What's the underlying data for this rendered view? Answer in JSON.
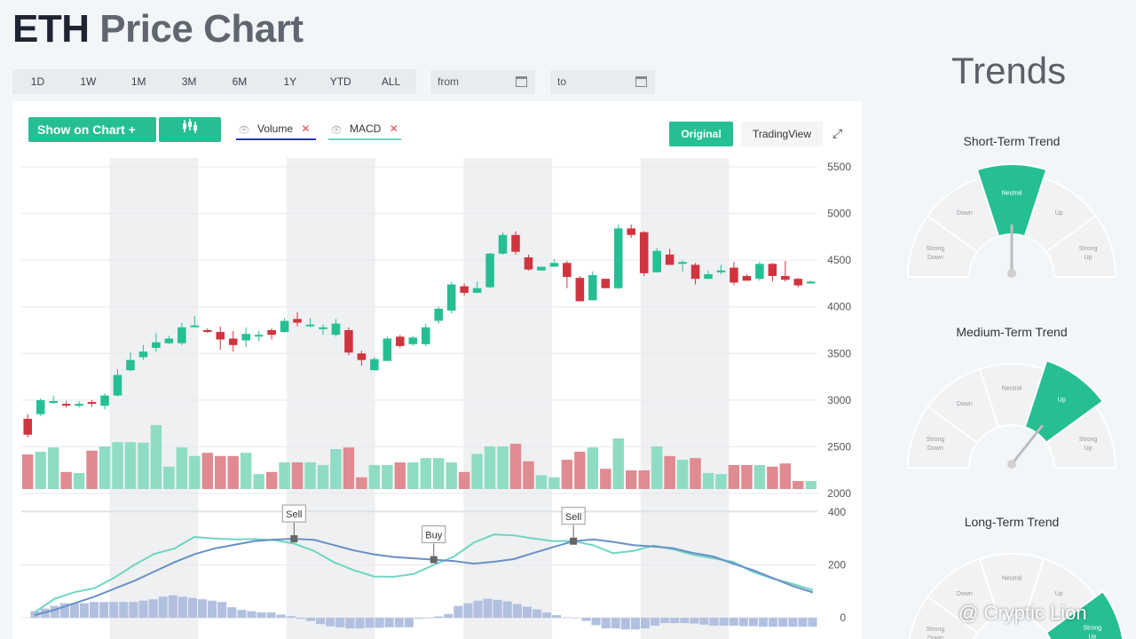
{
  "title": {
    "symbol": "ETH",
    "rest": "Price Chart"
  },
  "ranges": [
    "1D",
    "1W",
    "1M",
    "3M",
    "6M",
    "1Y",
    "YTD",
    "ALL"
  ],
  "date_from": {
    "placeholder": "from"
  },
  "date_to": {
    "placeholder": "to"
  },
  "toolbar": {
    "show_on_chart": "Show on Chart +",
    "indicators_icon": "candlestick-icon",
    "volume_tag": "Volume",
    "macd_tag": "MACD",
    "remove_mark": "✕",
    "original": "Original",
    "tradingview": "TradingView",
    "popout_icon": "popout-icon"
  },
  "colors": {
    "up": "#26bf94",
    "down": "#d0343f",
    "up_vol": "#8fdcc4",
    "down_vol": "#e08a91",
    "macd_line": "#6a8fc7",
    "signal_line": "#6fd5c2",
    "hist": "#b2c0e0",
    "accent": "#26bf94"
  },
  "chart_data": [
    {
      "type": "candlestick",
      "title": "",
      "ylim": [
        2000,
        5500
      ],
      "yticks": [
        2000,
        2500,
        3000,
        3500,
        4000,
        4500,
        5000,
        5500
      ],
      "candles": [
        [
          2800,
          2630,
          2850,
          2600
        ],
        [
          2850,
          3000,
          3020,
          2830
        ],
        [
          2970,
          2990,
          3050,
          2960
        ],
        [
          2960,
          2950,
          2990,
          2920
        ],
        [
          2940,
          2960,
          2990,
          2920
        ],
        [
          2980,
          2970,
          3000,
          2930
        ],
        [
          2940,
          3050,
          3070,
          2900
        ],
        [
          3050,
          3270,
          3330,
          3040
        ],
        [
          3320,
          3430,
          3510,
          3310
        ],
        [
          3460,
          3520,
          3590,
          3430
        ],
        [
          3560,
          3620,
          3720,
          3520
        ],
        [
          3610,
          3660,
          3690,
          3600
        ],
        [
          3610,
          3780,
          3830,
          3590
        ],
        [
          3790,
          3800,
          3900,
          3790
        ],
        [
          3750,
          3740,
          3770,
          3720
        ],
        [
          3730,
          3650,
          3790,
          3540
        ],
        [
          3660,
          3590,
          3740,
          3520
        ],
        [
          3640,
          3710,
          3780,
          3570
        ],
        [
          3700,
          3700,
          3740,
          3630
        ],
        [
          3750,
          3700,
          3770,
          3650
        ],
        [
          3730,
          3850,
          3880,
          3720
        ],
        [
          3870,
          3830,
          3940,
          3790
        ],
        [
          3810,
          3810,
          3880,
          3780
        ],
        [
          3780,
          3780,
          3810,
          3700
        ],
        [
          3700,
          3820,
          3870,
          3680
        ],
        [
          3750,
          3510,
          3780,
          3480
        ],
        [
          3500,
          3430,
          3530,
          3370
        ],
        [
          3320,
          3440,
          3460,
          3320
        ],
        [
          3420,
          3660,
          3680,
          3420
        ],
        [
          3680,
          3580,
          3700,
          3560
        ],
        [
          3600,
          3670,
          3690,
          3580
        ],
        [
          3600,
          3780,
          3820,
          3580
        ],
        [
          3850,
          3980,
          4000,
          3820
        ],
        [
          3960,
          4240,
          4270,
          3930
        ],
        [
          4220,
          4150,
          4250,
          4120
        ],
        [
          4150,
          4200,
          4270,
          4150
        ],
        [
          4210,
          4570,
          4580,
          4200
        ],
        [
          4570,
          4770,
          4800,
          4560
        ],
        [
          4770,
          4590,
          4810,
          4560
        ],
        [
          4530,
          4400,
          4560,
          4390
        ],
        [
          4390,
          4430,
          4430,
          4390
        ],
        [
          4430,
          4470,
          4510,
          4430
        ],
        [
          4470,
          4320,
          4490,
          4200
        ],
        [
          4310,
          4060,
          4330,
          4060
        ],
        [
          4070,
          4340,
          4380,
          4070
        ],
        [
          4300,
          4200,
          4300,
          4200
        ],
        [
          4200,
          4840,
          4880,
          4190
        ],
        [
          4840,
          4770,
          4880,
          4740
        ],
        [
          4800,
          4360,
          4810,
          4330
        ],
        [
          4370,
          4600,
          4630,
          4370
        ],
        [
          4560,
          4450,
          4620,
          4450
        ],
        [
          4480,
          4480,
          4500,
          4380
        ],
        [
          4450,
          4300,
          4470,
          4240
        ],
        [
          4300,
          4350,
          4390,
          4300
        ],
        [
          4370,
          4390,
          4450,
          4350
        ],
        [
          4420,
          4260,
          4480,
          4230
        ],
        [
          4330,
          4280,
          4350,
          4280
        ],
        [
          4300,
          4460,
          4480,
          4280
        ],
        [
          4460,
          4330,
          4470,
          4270
        ],
        [
          4330,
          4290,
          4490,
          4270
        ],
        [
          4300,
          4230,
          4310,
          4210
        ],
        [
          4250,
          4270,
          4280,
          4250
        ]
      ],
      "volume_relative": [
        0.65,
        0.7,
        0.78,
        0.32,
        0.3,
        0.72,
        0.8,
        0.88,
        0.88,
        0.87,
        1.2,
        0.42,
        0.78,
        0.62,
        0.68,
        0.62,
        0.62,
        0.68,
        0.28,
        0.32,
        0.5,
        0.5,
        0.5,
        0.45,
        0.75,
        0.78,
        0.22,
        0.45,
        0.45,
        0.5,
        0.5,
        0.58,
        0.58,
        0.5,
        0.32,
        0.66,
        0.8,
        0.8,
        0.85,
        0.52,
        0.26,
        0.22,
        0.55,
        0.7,
        0.78,
        0.38,
        0.95,
        0.35,
        0.35,
        0.8,
        0.62,
        0.55,
        0.58,
        0.3,
        0.28,
        0.45,
        0.45,
        0.45,
        0.42,
        0.48,
        0.15,
        0.15
      ]
    },
    {
      "type": "line",
      "title": "MACD",
      "ylim": [
        -40,
        400
      ],
      "yticks": [
        0,
        200,
        400
      ],
      "macd": [
        10,
        30,
        55,
        80,
        110,
        140,
        175,
        210,
        240,
        262,
        276,
        290,
        296,
        299,
        295,
        275,
        255,
        240,
        230,
        225,
        220,
        215,
        205,
        212,
        222,
        245,
        268,
        290,
        297,
        287,
        275,
        270,
        263,
        245,
        232,
        205,
        180,
        150,
        120,
        96
      ],
      "signal": [
        20,
        72,
        97,
        112,
        152,
        200,
        242,
        262,
        306,
        300,
        297,
        298,
        294,
        281,
        253,
        210,
        180,
        156,
        155,
        166,
        200,
        231,
        284,
        315,
        312,
        300,
        290,
        291,
        274,
        244,
        253,
        273,
        259,
        238,
        225,
        212,
        173,
        148,
        128,
        105
      ],
      "histogram": [
        25,
        35,
        45,
        55,
        55,
        55,
        60,
        60,
        60,
        60,
        60,
        65,
        70,
        80,
        85,
        80,
        75,
        70,
        65,
        60,
        40,
        30,
        25,
        20,
        20,
        12,
        6,
        -4,
        -12,
        -24,
        -32,
        -36,
        -40,
        -40,
        -38,
        -38,
        -36,
        -36,
        -36,
        -4,
        -2,
        5,
        14,
        45,
        55,
        65,
        72,
        68,
        62,
        52,
        42,
        32,
        20,
        10,
        2,
        -2,
        -12,
        -28,
        -40,
        -40,
        -44,
        -44,
        -40,
        -30,
        -20,
        -20,
        -20,
        -22,
        -26,
        -30,
        -30,
        -30,
        -32,
        -32,
        -34,
        -34,
        -34,
        -34,
        -34,
        -34
      ],
      "signals": [
        {
          "label": "Sell",
          "index": 13
        },
        {
          "label": "Buy",
          "index": 20
        },
        {
          "label": "Sell",
          "index": 27
        }
      ]
    }
  ],
  "trends": {
    "title": "Trends",
    "segment_labels": [
      "Strong Down",
      "Down",
      "Neutral",
      "Up",
      "Strong Up"
    ],
    "gauges": [
      {
        "title": "Short-Term Trend",
        "value": "Neutral",
        "active_index": 2
      },
      {
        "title": "Medium-Term Trend",
        "value": "Up",
        "active_index": 3
      },
      {
        "title": "Long-Term Trend",
        "value": "Strong Up",
        "active_index": 4
      }
    ]
  },
  "watermark": "@ Cryptic Lion"
}
